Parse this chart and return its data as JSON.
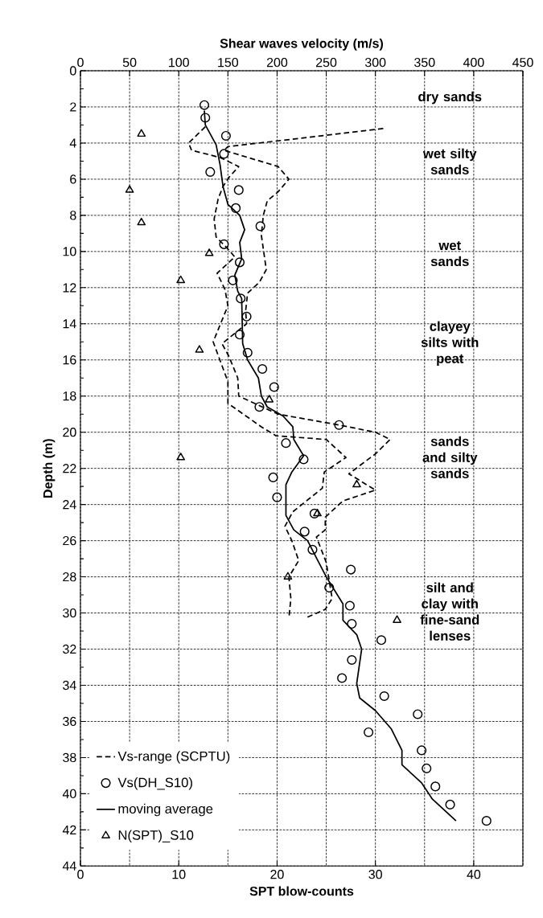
{
  "chart_data": {
    "type": "scatter",
    "xlabel": "SPT blow-counts",
    "x2label": "Shear waves velocity (m/s)",
    "ylabel": "Depth (m)",
    "xlim": [
      0,
      45
    ],
    "xticks": [
      0,
      10,
      20,
      30,
      40
    ],
    "x2lim": [
      0,
      450
    ],
    "x2ticks": [
      0,
      50,
      100,
      150,
      200,
      250,
      300,
      350,
      400,
      450
    ],
    "ylim": [
      44,
      0
    ],
    "yticks": [
      0,
      2,
      4,
      6,
      8,
      10,
      12,
      14,
      16,
      18,
      20,
      22,
      24,
      26,
      28,
      30,
      32,
      34,
      36,
      38,
      40,
      42,
      44
    ],
    "grid": true,
    "legend": "bottom left",
    "series": [
      {
        "name": "Vs-range (SCPTU)",
        "type": "line",
        "axis": "x2",
        "line_style": "dashed",
        "marker": "none",
        "color": "#000000",
        "x": [
          127,
          110,
          113,
          142,
          161,
          151,
          145,
          140,
          136,
          138,
          149,
          157,
          139,
          147,
          150,
          135,
          150,
          150,
          184,
          199,
          250,
          270,
          248,
          246,
          216,
          208,
          215,
          222,
          212,
          214,
          212
        ],
        "values": [
          3.1,
          4.0,
          4.4,
          4.8,
          5.3,
          5.9,
          6.4,
          7.1,
          8.2,
          9.2,
          9.8,
          10.3,
          11.2,
          12.1,
          13.0,
          15.0,
          17.2,
          18.4,
          19.7,
          20.2,
          20.4,
          21.4,
          22.2,
          23.1,
          24.4,
          25.2,
          26.0,
          27.1,
          28.0,
          29.2,
          30.3
        ]
      },
      {
        "type": "line",
        "axis": "x2",
        "line_style": "dashed",
        "marker": "none",
        "color": "#000000",
        "x": [
          308,
          150,
          146,
          201,
          212,
          201,
          190,
          186,
          184,
          189,
          182,
          170,
          168,
          169,
          144,
          151,
          160,
          161,
          201,
          263,
          300,
          315,
          300,
          273,
          300,
          267,
          249,
          249,
          240,
          250,
          256,
          249,
          228
        ],
        "values": [
          3.2,
          4.2,
          4.4,
          5.3,
          6.0,
          6.7,
          7.2,
          8.0,
          9.1,
          11.0,
          11.7,
          12.3,
          13.3,
          14.0,
          15.1,
          15.8,
          17.0,
          18.0,
          19.0,
          19.6,
          20.0,
          20.4,
          21.2,
          22.3,
          23.2,
          23.8,
          24.7,
          25.4,
          25.8,
          27.2,
          29.2,
          29.8,
          30.3
        ]
      },
      {
        "name": "Vs(DH_S10)",
        "axis": "x2",
        "marker": "circle",
        "color": "#000000",
        "x": [
          126,
          127,
          148,
          146,
          132,
          161,
          158,
          183,
          146,
          162,
          155,
          163,
          169,
          162,
          170,
          185,
          197,
          182,
          263,
          209,
          227,
          196,
          200,
          238,
          228,
          236,
          275,
          253,
          274,
          276,
          306,
          276,
          266,
          309,
          343,
          293,
          347,
          352,
          361,
          376,
          413
        ],
        "values": [
          1.9,
          2.6,
          3.6,
          4.6,
          5.6,
          6.6,
          7.6,
          8.6,
          9.6,
          10.6,
          11.6,
          12.6,
          13.6,
          14.6,
          15.6,
          16.5,
          17.5,
          18.6,
          19.6,
          20.6,
          21.5,
          22.5,
          23.6,
          24.5,
          25.5,
          26.5,
          27.6,
          28.6,
          29.6,
          30.6,
          31.5,
          32.6,
          33.6,
          34.6,
          35.6,
          36.6,
          37.6,
          38.6,
          39.6,
          40.6,
          41.5
        ]
      },
      {
        "name": "moving average",
        "type": "line",
        "axis": "x2",
        "line_style": "solid",
        "marker": "none",
        "color": "#000000",
        "x": [
          126,
          127,
          138,
          142,
          145,
          150,
          162,
          167,
          162,
          164,
          157,
          160,
          164,
          165,
          170,
          181,
          184,
          190,
          206,
          216,
          217,
          227,
          215,
          209,
          209,
          217,
          231,
          250,
          267,
          267,
          281,
          286,
          281,
          284,
          300,
          316,
          327,
          327,
          347,
          358,
          382
        ],
        "values": [
          2.2,
          3.0,
          4.1,
          5.2,
          6.4,
          7.4,
          8.0,
          8.8,
          9.5,
          10.4,
          11.3,
          12.2,
          12.6,
          15.1,
          16.0,
          17.0,
          18.0,
          18.6,
          19.1,
          19.7,
          20.4,
          21.3,
          22.2,
          22.9,
          24.6,
          25.4,
          26.0,
          28.0,
          29.5,
          30.4,
          31.2,
          32.0,
          33.9,
          34.7,
          35.4,
          36.4,
          37.6,
          38.4,
          39.4,
          40.3,
          41.5
        ]
      },
      {
        "name": "N(SPT)_S10",
        "marker": "triangle",
        "color": "#000000",
        "x": [
          6.2,
          5.0,
          6.2,
          13.1,
          10.2,
          12.1,
          19.2,
          10.2,
          28.1,
          24.1,
          21.1,
          32.2
        ],
        "values": [
          3.5,
          6.6,
          8.4,
          10.1,
          11.6,
          15.45,
          18.2,
          21.4,
          22.9,
          24.5,
          28.0,
          30.4
        ]
      }
    ],
    "annotations": [
      "dry sands",
      "wet silty sands",
      "wet sands",
      "clayey silts with peat",
      "sands and silty sands",
      "silt and clay with fine-sand lenses"
    ]
  }
}
